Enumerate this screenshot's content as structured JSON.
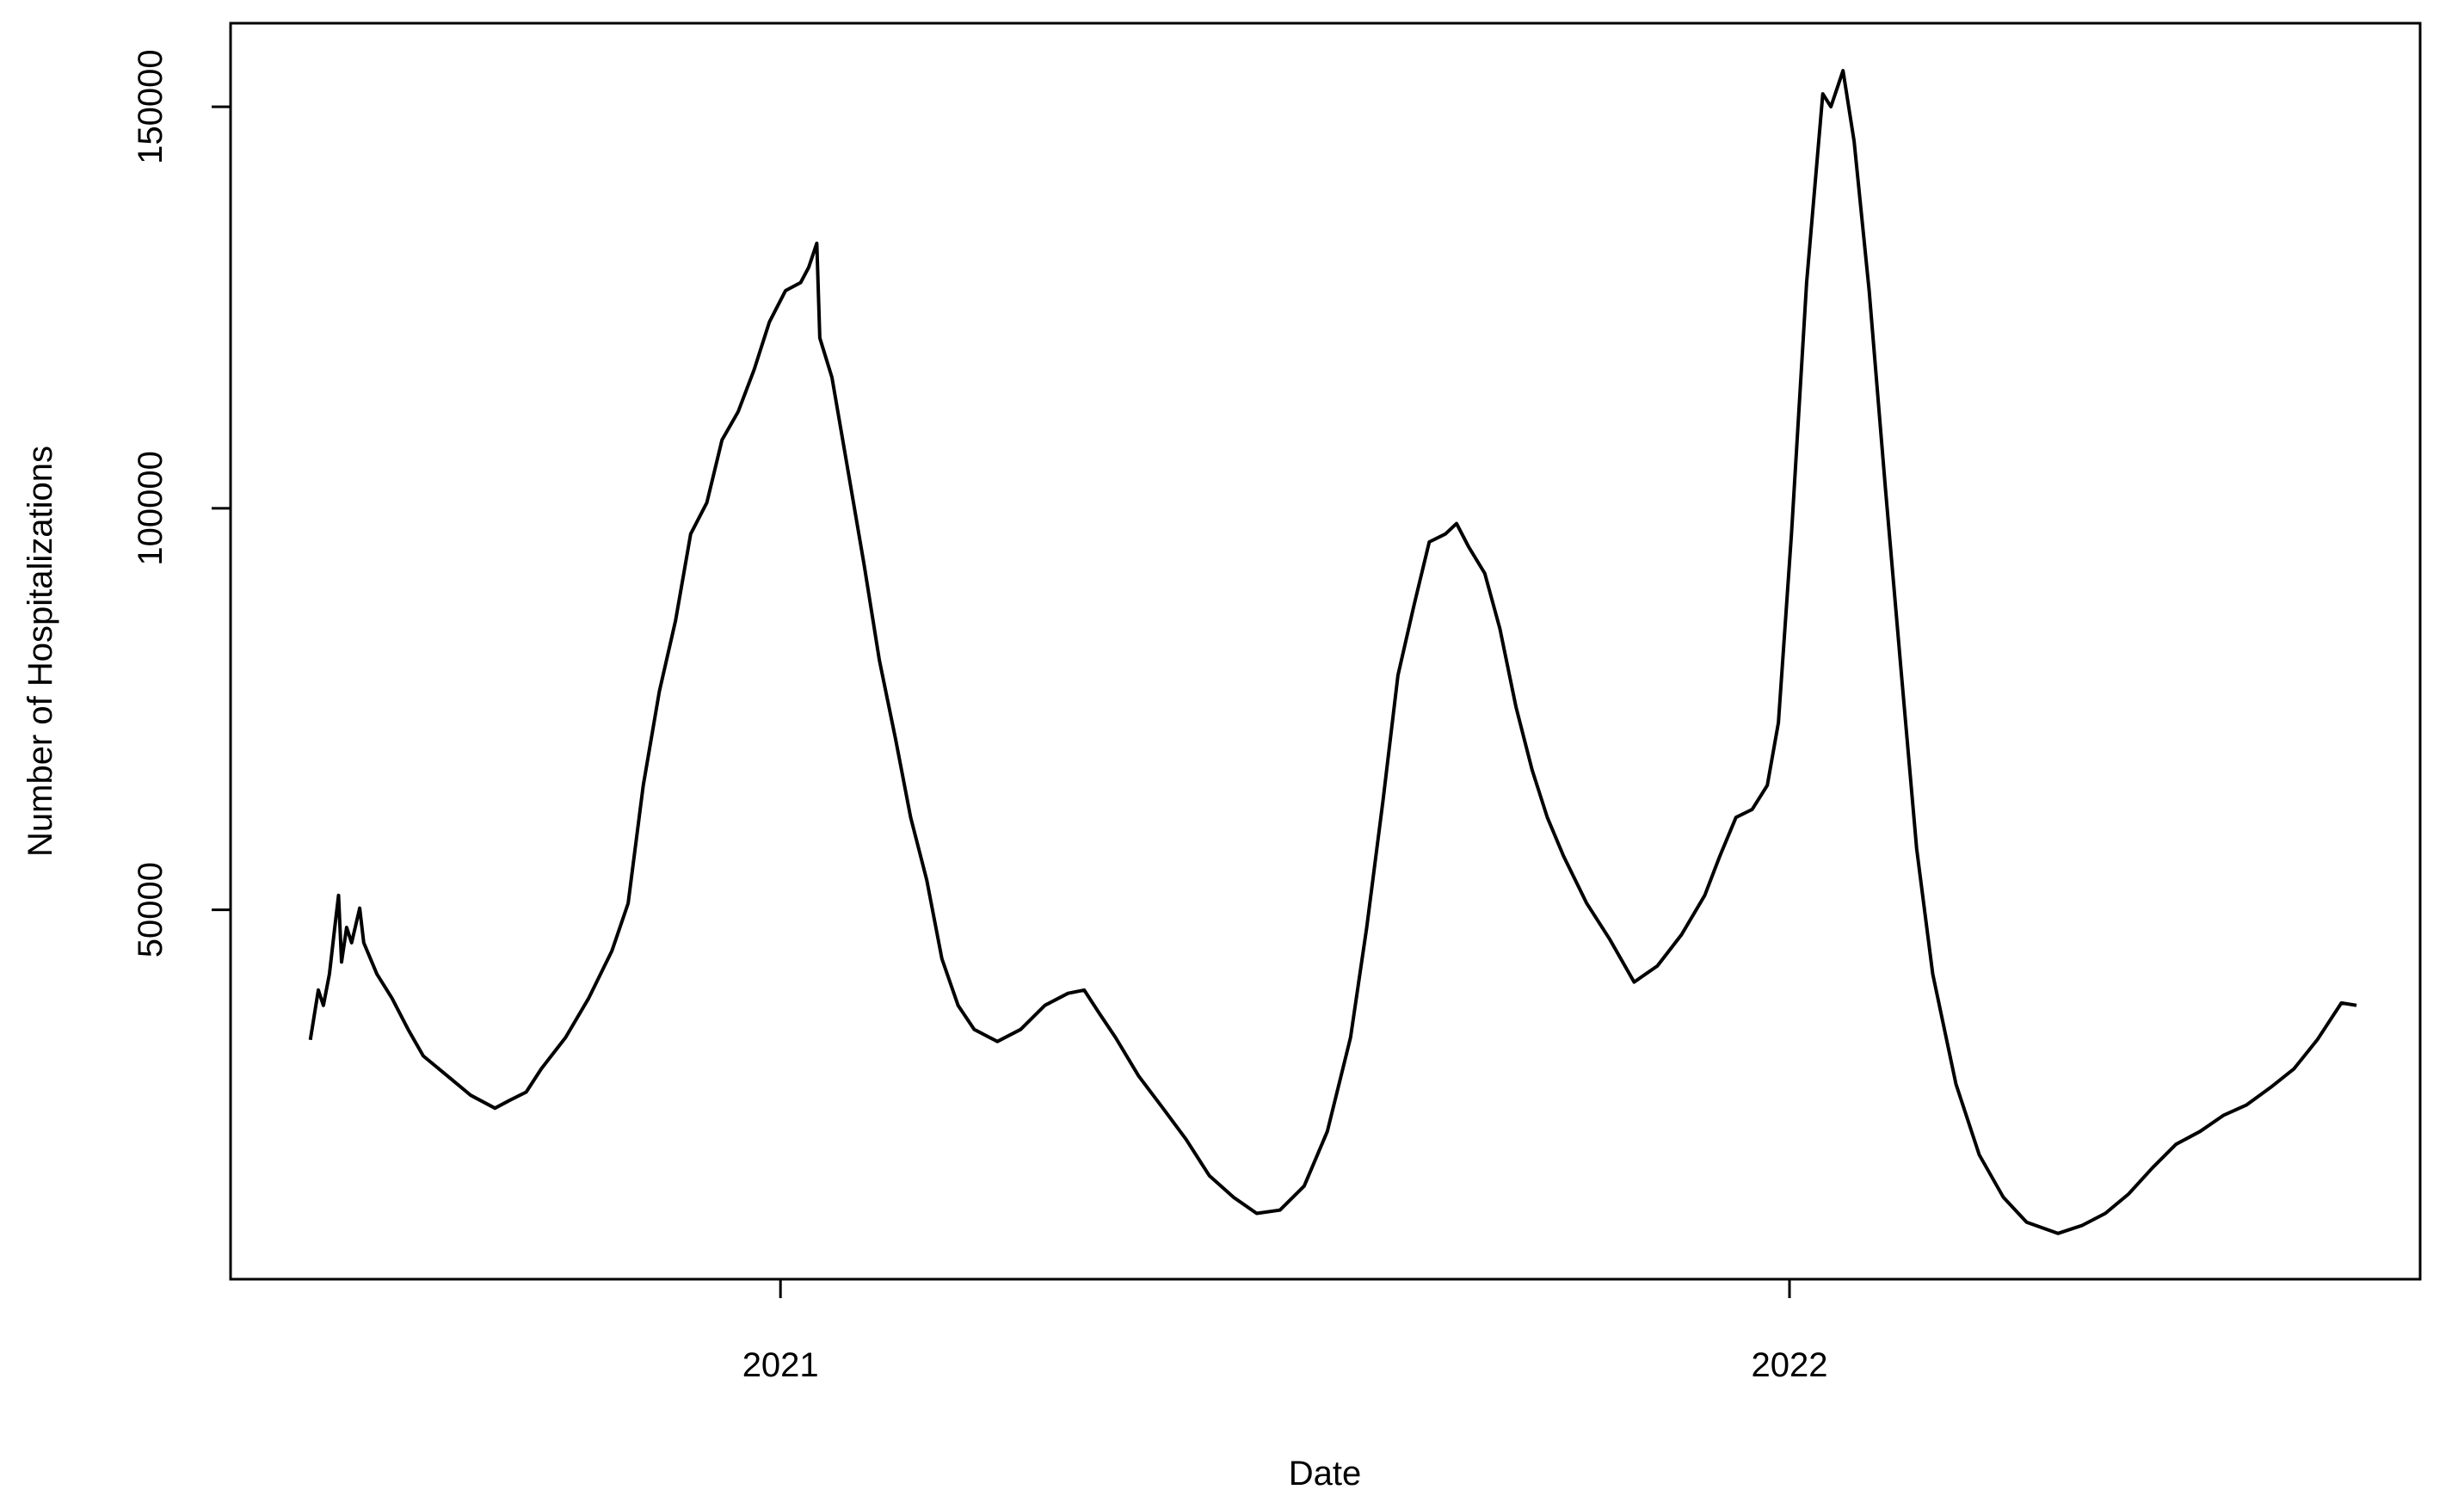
{
  "chart_data": {
    "type": "line",
    "xlabel": "Date",
    "ylabel": "Number of Hospitalizations",
    "x": [
      2020.534,
      2020.542,
      2020.547,
      2020.553,
      2020.558,
      2020.562,
      2020.565,
      2020.57,
      2020.575,
      2020.583,
      2020.587,
      2020.6,
      2020.615,
      2020.631,
      2020.646,
      2020.67,
      2020.693,
      2020.717,
      2020.732,
      2020.748,
      2020.763,
      2020.787,
      2020.81,
      2020.833,
      2020.849,
      2020.864,
      2020.88,
      2020.896,
      2020.911,
      2020.927,
      2020.942,
      2020.958,
      2020.974,
      2020.989,
      2021.005,
      2021.02,
      2021.028,
      2021.036,
      2021.039,
      2021.051,
      2021.067,
      2021.083,
      2021.098,
      2021.114,
      2021.129,
      2021.145,
      2021.16,
      2021.176,
      2021.192,
      2021.215,
      2021.238,
      2021.262,
      2021.285,
      2021.301,
      2021.316,
      2021.332,
      2021.355,
      2021.379,
      2021.402,
      2021.425,
      2021.449,
      2021.472,
      2021.495,
      2021.519,
      2021.542,
      2021.565,
      2021.581,
      2021.597,
      2021.612,
      2021.628,
      2021.643,
      2021.659,
      2021.67,
      2021.682,
      2021.698,
      2021.713,
      2021.729,
      2021.745,
      2021.76,
      2021.776,
      2021.799,
      2021.822,
      2021.846,
      2021.869,
      2021.893,
      2021.916,
      2021.931,
      2021.947,
      2021.963,
      2021.978,
      2021.989,
      2022.002,
      2022.017,
      2022.033,
      2022.041,
      2022.048,
      2022.053,
      2022.064,
      2022.079,
      2022.095,
      2022.111,
      2022.126,
      2022.142,
      2022.165,
      2022.188,
      2022.212,
      2022.235,
      2022.266,
      2022.29,
      2022.313,
      2022.336,
      2022.36,
      2022.383,
      2022.407,
      2022.43,
      2022.453,
      2022.477,
      2022.5,
      2022.523,
      2022.547,
      2022.562
    ],
    "series": [
      {
        "color": "#000000",
        "values": [
          33800,
          40000,
          38100,
          42000,
          47500,
          51800,
          43500,
          47800,
          45900,
          50200,
          45900,
          42000,
          39000,
          35100,
          31800,
          29300,
          26900,
          25300,
          26300,
          27300,
          30200,
          34100,
          39000,
          44900,
          50800,
          65500,
          77200,
          86000,
          96800,
          100700,
          108500,
          112000,
          117300,
          123200,
          127100,
          128100,
          130000,
          133000,
          121200,
          116300,
          104600,
          92900,
          81100,
          71300,
          61500,
          53700,
          43900,
          38100,
          35100,
          33600,
          35100,
          38100,
          39600,
          40000,
          37100,
          34100,
          29300,
          25300,
          21400,
          16900,
          14200,
          12200,
          12600,
          15600,
          22400,
          34100,
          47800,
          63500,
          79200,
          88000,
          95800,
          96800,
          98100,
          95200,
          91900,
          85000,
          75200,
          67400,
          61500,
          56700,
          50800,
          46300,
          41000,
          43000,
          46900,
          51800,
          56700,
          61500,
          62500,
          65500,
          73300,
          96800,
          128100,
          151600,
          150000,
          152600,
          154500,
          145700,
          127100,
          102600,
          79200,
          57600,
          42000,
          28300,
          19500,
          14200,
          11100,
          9700,
          10700,
          12200,
          14600,
          17900,
          20800,
          22400,
          24400,
          25700,
          27900,
          30200,
          33800,
          38400,
          38100
        ]
      }
    ],
    "xlim": [
      2020.455,
      2022.625
    ],
    "xticks": [
      2021,
      2022
    ],
    "ylim": [
      4000,
      160400
    ],
    "yticks": [
      50000,
      100000,
      150000
    ]
  }
}
